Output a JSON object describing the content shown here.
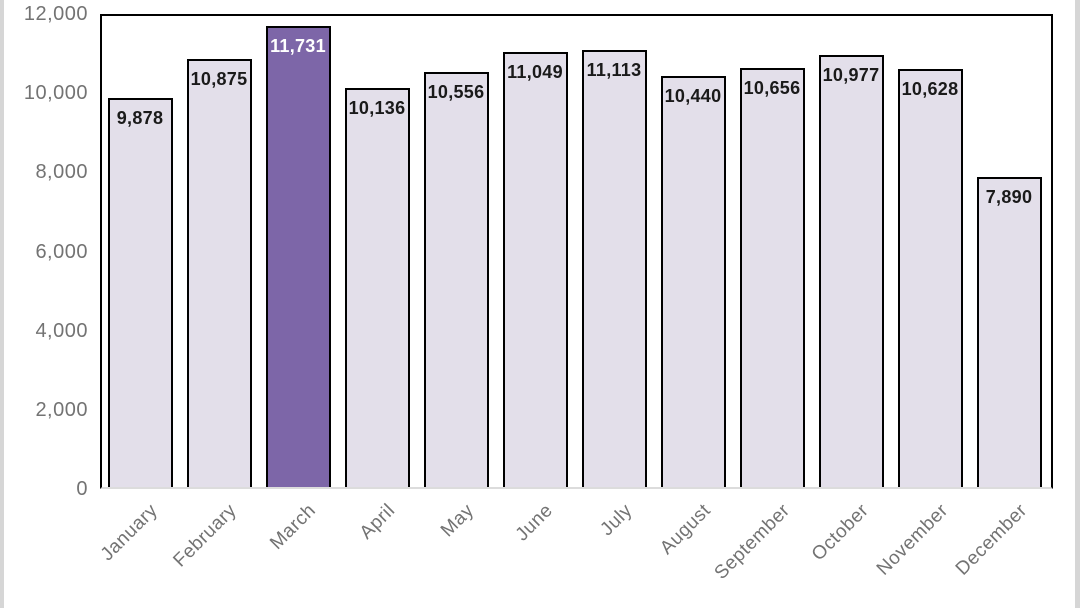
{
  "chart_data": {
    "type": "bar",
    "title": "",
    "xlabel": "",
    "ylabel": "",
    "categories": [
      "January",
      "February",
      "March",
      "April",
      "May",
      "June",
      "July",
      "August",
      "September",
      "October",
      "November",
      "December"
    ],
    "values": [
      9878,
      10875,
      11731,
      10136,
      10556,
      11049,
      11113,
      10440,
      10656,
      10977,
      10628,
      7890
    ],
    "data_labels": [
      "9,878",
      "10,875",
      "11,731",
      "10,136",
      "10,556",
      "11,049",
      "11,113",
      "10,440",
      "10,656",
      "10,977",
      "10,628",
      "7,890"
    ],
    "highlight_index": 2,
    "ylim": [
      0,
      12000
    ],
    "ytick_step": 2000,
    "ytick_values": [
      0,
      2000,
      4000,
      6000,
      8000,
      10000,
      12000
    ],
    "ytick_labels": [
      "0",
      "2,000",
      "4,000",
      "6,000",
      "8,000",
      "10,000",
      "12,000"
    ],
    "grid": false,
    "legend": false,
    "colors": {
      "bar_fill": "#e3dfea",
      "bar_highlight_fill": "#7d66a8",
      "bar_outline": "#000000",
      "data_label": "#1a1a1a",
      "data_label_highlight": "#ffffff",
      "axis_label": "#737373",
      "plot_border": "#000000",
      "baseline": "#dcdcdc",
      "edge_strip": "#d6d6d6"
    }
  }
}
